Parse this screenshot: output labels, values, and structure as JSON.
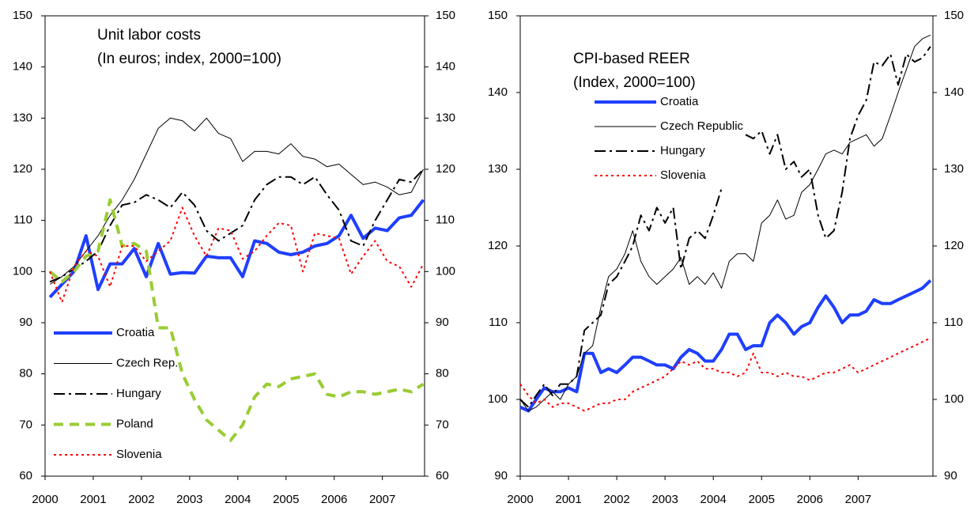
{
  "chart_data": [
    {
      "type": "line",
      "title": "Unit labor costs",
      "subtitle": "(In euros; index, 2000=100)",
      "x": [
        2000.1,
        2000.35,
        2000.6,
        2000.85,
        2001.1,
        2001.35,
        2001.6,
        2001.85,
        2002.1,
        2002.35,
        2002.6,
        2002.85,
        2003.1,
        2003.35,
        2003.6,
        2003.85,
        2004.1,
        2004.35,
        2004.6,
        2004.85,
        2005.1,
        2005.35,
        2005.6,
        2005.85,
        2006.1,
        2006.35,
        2006.6,
        2006.85,
        2007.1,
        2007.35,
        2007.6,
        2007.85
      ],
      "xlim": [
        2000,
        2007.875
      ],
      "xticks": [
        2000,
        2001,
        2002,
        2003,
        2004,
        2005,
        2006,
        2007
      ],
      "ylim": [
        60,
        150
      ],
      "yticks": [
        60,
        70,
        80,
        90,
        100,
        110,
        120,
        130,
        140,
        150
      ],
      "y2lim": [
        60,
        150
      ],
      "y2ticks": [
        60,
        70,
        80,
        90,
        100,
        110,
        120,
        130,
        140,
        150
      ],
      "legend": "lower-left",
      "series": [
        {
          "name": "Croatia",
          "color": "#1f3fff",
          "style": "thick-solid",
          "values": [
            95,
            97.5,
            100,
            107,
            96.5,
            101.5,
            101.5,
            104.5,
            99,
            105.5,
            99.5,
            99.8,
            99.7,
            103,
            102.7,
            102.7,
            99,
            106,
            105.5,
            103.8,
            103.3,
            103.8,
            105,
            105.5,
            107,
            111,
            106.5,
            108.5,
            108,
            110.5,
            111,
            114
          ]
        },
        {
          "name": "Czech Rep.",
          "color": "#000000",
          "style": "thin-solid",
          "values": [
            97.5,
            99,
            101,
            104,
            107,
            111,
            114,
            118,
            123,
            128,
            130,
            129.5,
            127.5,
            130,
            127,
            126,
            121.5,
            123.5,
            123.5,
            123,
            125,
            122.5,
            122,
            120.5,
            121,
            119,
            117,
            117.5,
            116.5,
            115,
            115.5,
            120
          ]
        },
        {
          "name": "Hungary",
          "color": "#000000",
          "style": "dash-dot",
          "values": [
            98,
            99,
            100.5,
            102,
            104,
            109,
            113,
            113.5,
            115,
            114,
            112.5,
            115.5,
            113,
            108,
            106,
            107.5,
            109,
            114,
            117,
            118.5,
            118.5,
            117,
            118.5,
            115,
            112,
            106,
            105,
            110,
            114,
            118,
            117.5,
            120
          ]
        },
        {
          "name": "Poland",
          "color": "#99cc33",
          "style": "thick-dashed",
          "values": [
            100,
            98,
            100,
            103,
            104,
            114,
            105,
            105.5,
            104,
            89,
            89,
            80,
            75,
            71,
            69,
            67,
            70,
            75.5,
            78,
            77.5,
            79,
            79.5,
            80,
            76,
            75.5,
            76.5,
            76.5,
            76,
            76.5,
            77,
            76.5,
            78
          ]
        },
        {
          "name": "Slovenia",
          "color": "#ff0000",
          "style": "dotted",
          "values": [
            100,
            94,
            101,
            104,
            103,
            97,
            105,
            105,
            102,
            104,
            106,
            112.5,
            107,
            103,
            108.5,
            108,
            102.5,
            104,
            107,
            109.5,
            109,
            100,
            107.5,
            107,
            106.5,
            99.5,
            103,
            106,
            102,
            101,
            97,
            101.5
          ]
        }
      ]
    },
    {
      "type": "line",
      "title": "CPI-based REER",
      "subtitle": "(Index, 2000=100)",
      "x": [
        2000,
        2000.17,
        2000.33,
        2000.5,
        2000.67,
        2000.83,
        2001,
        2001.17,
        2001.33,
        2001.5,
        2001.67,
        2001.83,
        2002,
        2002.17,
        2002.33,
        2002.5,
        2002.67,
        2002.83,
        2003,
        2003.17,
        2003.33,
        2003.5,
        2003.67,
        2003.83,
        2004,
        2004.17,
        2004.33,
        2004.5,
        2004.67,
        2004.83,
        2005,
        2005.17,
        2005.33,
        2005.5,
        2005.67,
        2005.83,
        2006,
        2006.17,
        2006.33,
        2006.5,
        2006.67,
        2006.83,
        2007,
        2007.17,
        2007.33,
        2007.5,
        2007.67,
        2007.83,
        2008,
        2008.17,
        2008.33,
        2008.5
      ],
      "xlim": [
        2000,
        2008.55
      ],
      "xticks": [
        2000,
        2001,
        2002,
        2003,
        2004,
        2005,
        2006,
        2007
      ],
      "ylim": [
        90,
        150
      ],
      "yticks": [
        90,
        100,
        110,
        120,
        130,
        140,
        150
      ],
      "y2lim": [
        90,
        150
      ],
      "y2ticks": [
        90,
        100,
        110,
        120,
        130,
        140,
        150
      ],
      "legend": "upper-left",
      "series": [
        {
          "name": "Croatia",
          "color": "#1f3fff",
          "style": "thick-solid",
          "values": [
            99,
            98.5,
            100,
            101.5,
            101,
            101,
            101.5,
            101,
            106,
            106,
            103.5,
            104,
            103.5,
            104.5,
            105.5,
            105.5,
            105,
            104.5,
            104.5,
            104,
            105.5,
            106.5,
            106,
            105,
            105,
            106.5,
            108.5,
            108.5,
            106.5,
            107,
            107,
            110,
            111,
            110,
            108.5,
            109.5,
            110,
            112,
            113.5,
            112,
            110,
            111,
            111,
            111.5,
            113,
            112.5,
            112.5,
            113,
            113.5,
            114,
            114.5,
            115.5
          ]
        },
        {
          "name": "Czech Republic",
          "color": "#000000",
          "style": "thin-solid",
          "values": [
            100,
            98.5,
            99,
            100,
            101,
            100,
            102,
            103,
            106,
            107,
            112,
            116,
            117,
            119,
            122,
            118,
            116,
            115,
            116,
            117,
            118.5,
            115,
            116,
            115,
            116.5,
            114.5,
            118,
            119,
            119,
            118,
            123,
            124,
            126,
            123.5,
            124,
            127,
            128,
            130,
            132,
            132.5,
            132,
            133.5,
            134,
            134.5,
            133,
            134,
            137,
            140,
            143,
            146,
            147,
            147.5
          ]
        },
        {
          "name": "Hungary",
          "color": "#000000",
          "style": "dash-dot",
          "values": [
            100,
            99,
            100.5,
            102,
            100.5,
            102,
            102,
            103,
            109,
            110,
            111,
            115,
            116,
            118,
            120,
            124,
            122,
            125,
            123,
            125,
            117,
            121,
            122,
            121,
            124,
            127.5,
            null,
            null,
            134.5,
            134,
            135,
            132,
            134.5,
            130,
            131,
            129,
            130,
            124,
            121,
            122,
            127,
            134,
            137,
            139,
            144,
            143.5,
            145,
            141,
            145,
            144,
            144.5,
            146
          ]
        },
        {
          "name": "Slovenia",
          "color": "#ff0000",
          "style": "dotted",
          "values": [
            102,
            100.5,
            99.5,
            100,
            99,
            99.5,
            99.5,
            99,
            98.5,
            99,
            99.5,
            99.5,
            100,
            100,
            101,
            101.5,
            102,
            102.5,
            103,
            104,
            105,
            104.5,
            105,
            104,
            104,
            103.5,
            103.5,
            103,
            103.5,
            106,
            103.5,
            103.5,
            103,
            103.5,
            103,
            103,
            102.5,
            103,
            103.5,
            103.5,
            104,
            104.5,
            103.5,
            104,
            104.5,
            105,
            105.5,
            106,
            106.5,
            107,
            107.5,
            108
          ]
        }
      ]
    }
  ]
}
